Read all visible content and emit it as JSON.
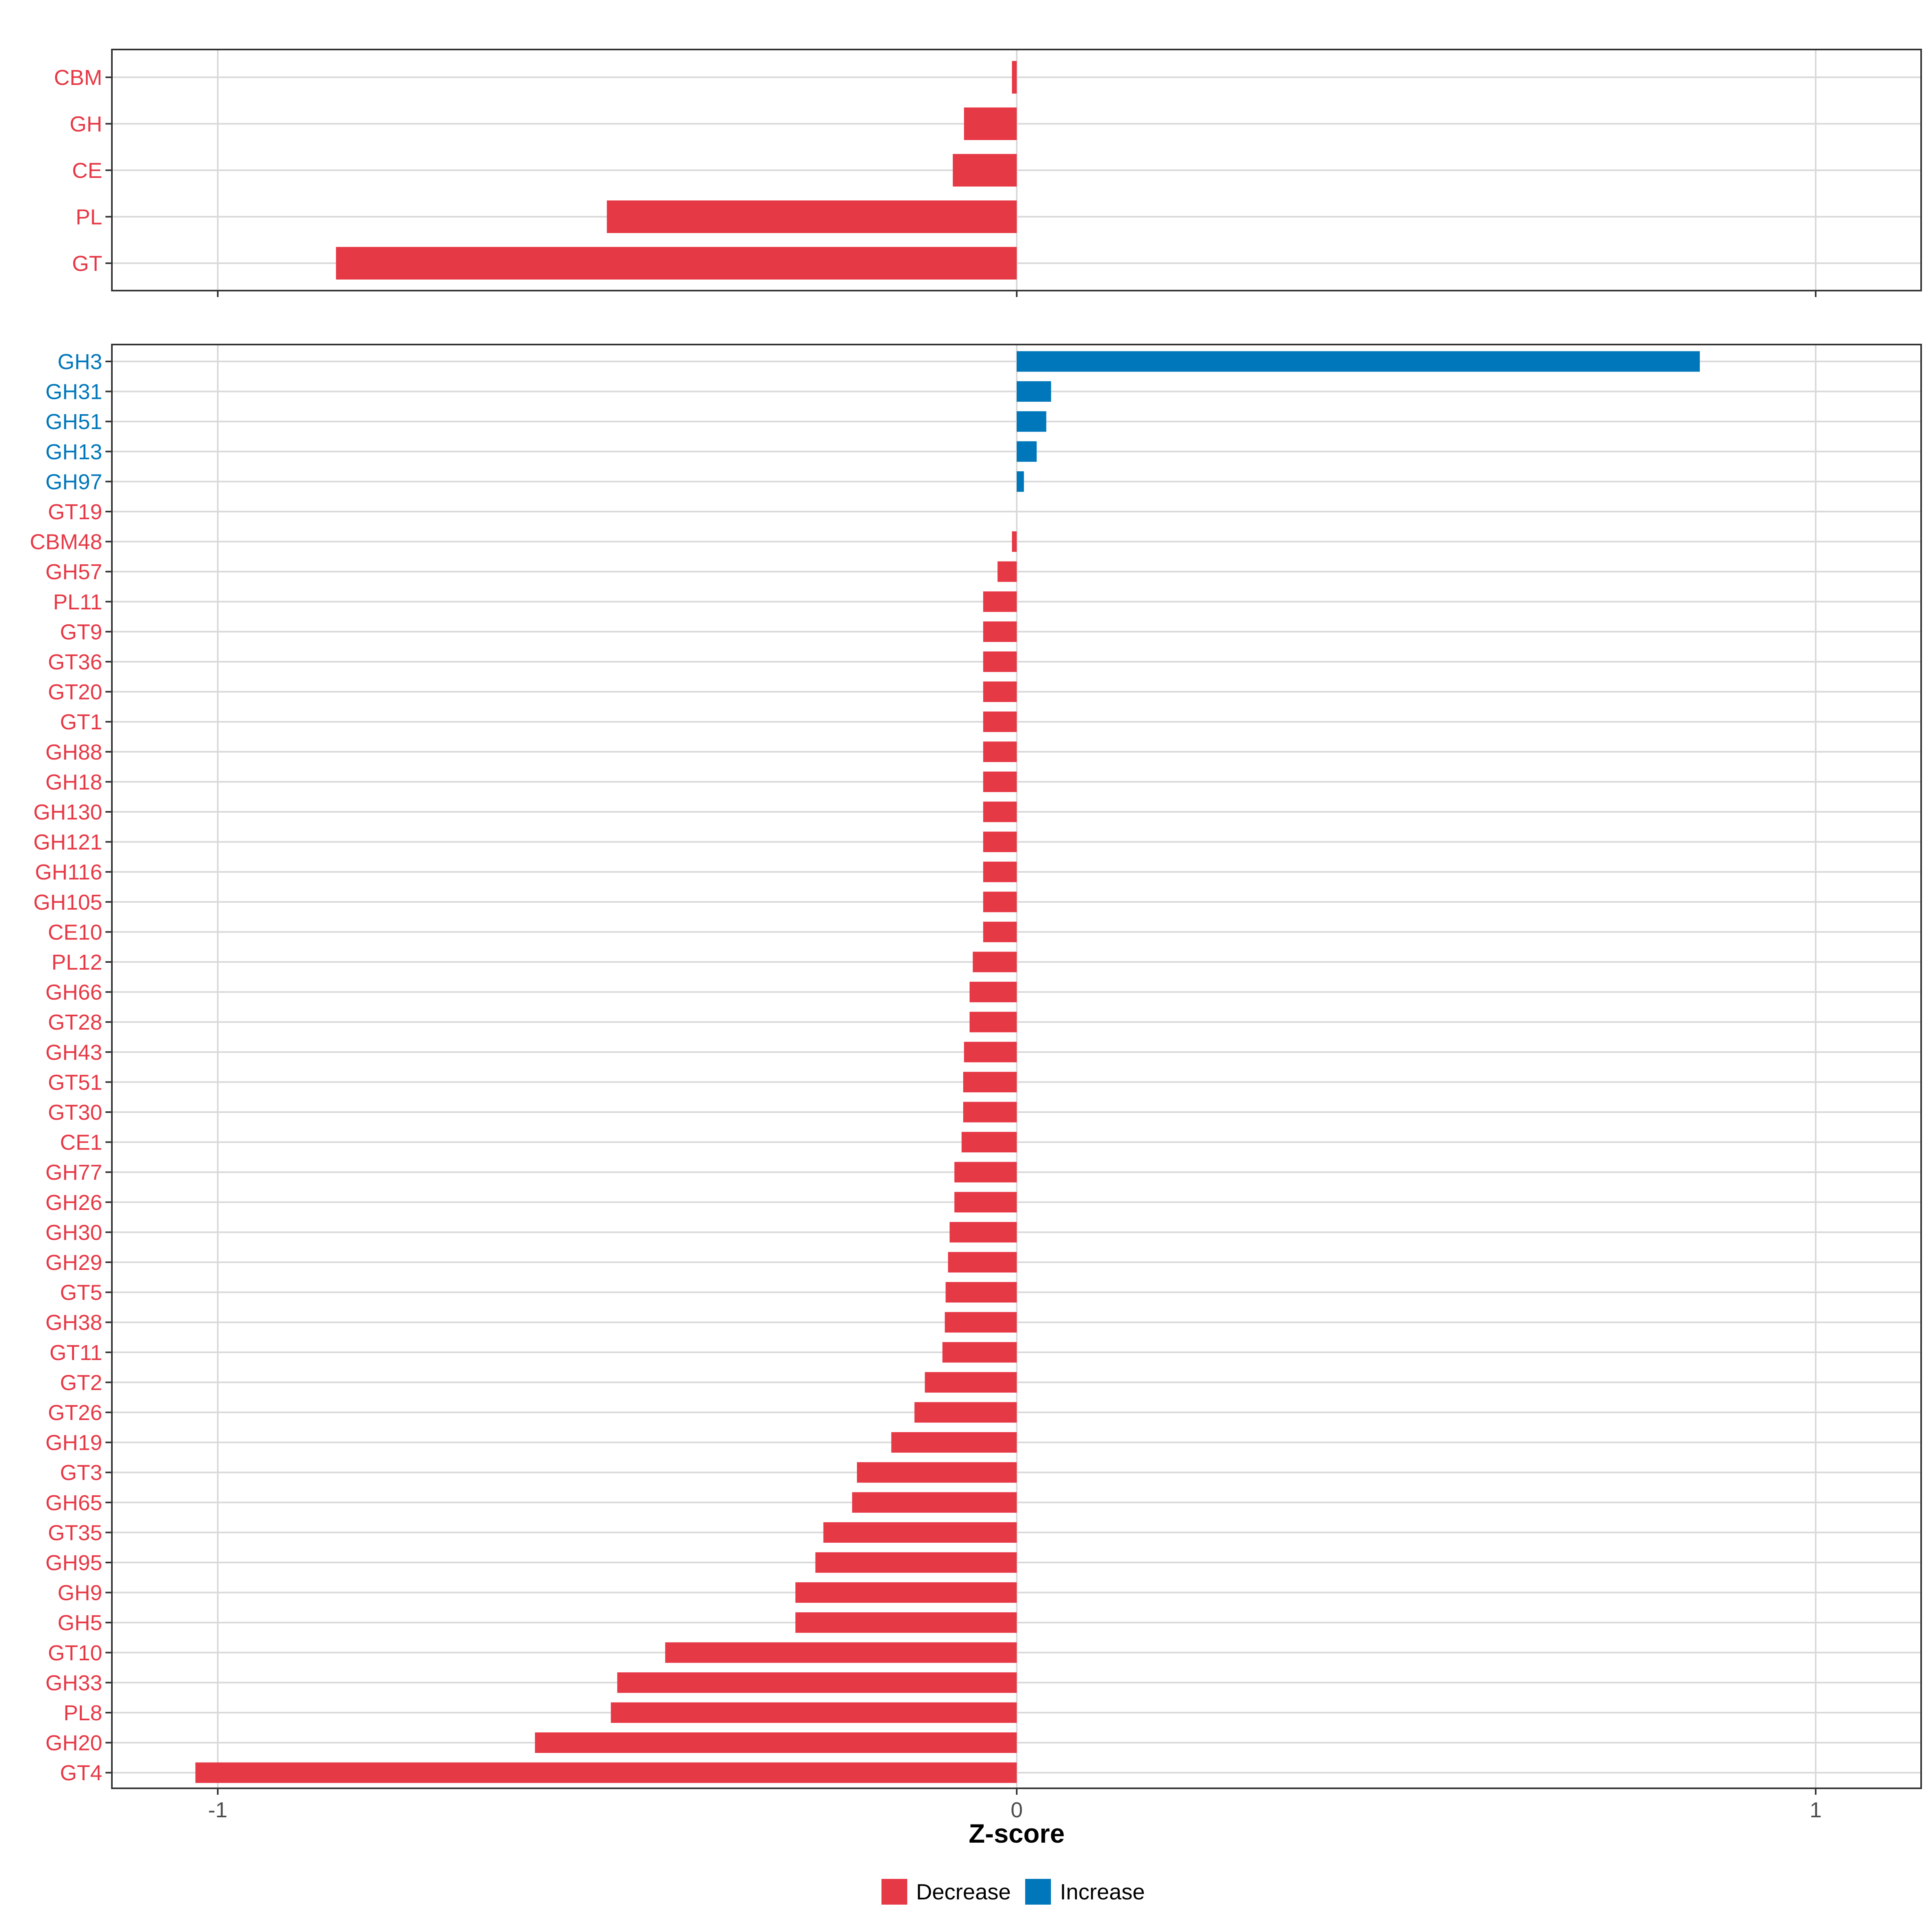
{
  "colors": {
    "decrease": "#E63946",
    "increase": "#0077BB",
    "grid": "#D9D9D9",
    "border": "#333333"
  },
  "chart_data": {
    "type": "bar",
    "orientation": "horizontal",
    "xlabel": "Z-score",
    "xlim": [
      -1.13,
      1.13
    ],
    "xticks": [
      -1,
      0,
      1
    ],
    "xtick_labels": [
      "-1",
      "0",
      "1"
    ],
    "legend_position": "bottom",
    "legend": [
      {
        "key": "decrease",
        "label": "Decrease"
      },
      {
        "key": "increase",
        "label": "Increase"
      }
    ],
    "panels": [
      {
        "name": "family",
        "categories": [
          "CBM",
          "GH",
          "CE",
          "PL",
          "GT"
        ],
        "values": [
          -0.006,
          -0.066,
          -0.08,
          -0.513,
          -0.852
        ]
      },
      {
        "name": "subfamily",
        "categories": [
          "GH3",
          "GH31",
          "GH51",
          "GH13",
          "GH97",
          "GT19",
          "CBM48",
          "GH57",
          "PL11",
          "GT9",
          "GT36",
          "GT20",
          "GT1",
          "GH88",
          "GH18",
          "GH130",
          "GH121",
          "GH116",
          "GH105",
          "CE10",
          "PL12",
          "GH66",
          "GT28",
          "GH43",
          "GT51",
          "GT30",
          "CE1",
          "GH77",
          "GH26",
          "GH30",
          "GH29",
          "GT5",
          "GH38",
          "GT11",
          "GT2",
          "GT26",
          "GH19",
          "GT3",
          "GH65",
          "GT35",
          "GH95",
          "GH9",
          "GH5",
          "GT10",
          "GH33",
          "PL8",
          "GH20",
          "GT4"
        ],
        "values": [
          0.855,
          0.043,
          0.037,
          0.025,
          0.009,
          0.0,
          -0.006,
          -0.024,
          -0.042,
          -0.042,
          -0.042,
          -0.042,
          -0.042,
          -0.042,
          -0.042,
          -0.042,
          -0.042,
          -0.042,
          -0.042,
          -0.042,
          -0.055,
          -0.059,
          -0.059,
          -0.066,
          -0.067,
          -0.067,
          -0.069,
          -0.078,
          -0.078,
          -0.084,
          -0.086,
          -0.089,
          -0.09,
          -0.093,
          -0.115,
          -0.128,
          -0.157,
          -0.2,
          -0.206,
          -0.242,
          -0.252,
          -0.277,
          -0.277,
          -0.44,
          -0.5,
          -0.508,
          -0.603,
          -1.028
        ]
      }
    ]
  }
}
